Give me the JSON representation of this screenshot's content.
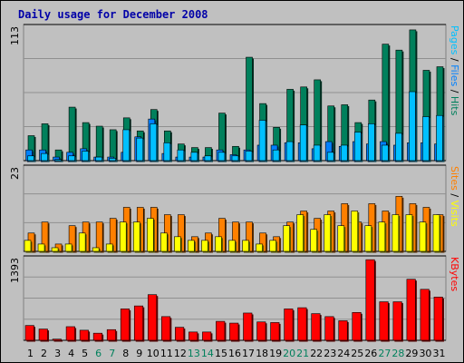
{
  "title": "Daily usage for December 2008",
  "colors": {
    "hits": "#00805c",
    "files": "#0080ff",
    "pages": "#00c0ff",
    "visits": "#ffff00",
    "sites": "#ff8000",
    "kbytes": "#ff0000",
    "weekend": "#00805c",
    "weekday": "#000000"
  },
  "chart_data": [
    {
      "type": "bar",
      "panel": "hits-files-pages",
      "categories": [
        "1",
        "2",
        "3",
        "4",
        "5",
        "6",
        "7",
        "8",
        "9",
        "10",
        "11",
        "12",
        "13",
        "14",
        "15",
        "16",
        "17",
        "18",
        "19",
        "20",
        "21",
        "22",
        "23",
        "24",
        "25",
        "26",
        "27",
        "28",
        "29",
        "30",
        "31"
      ],
      "weekend": [
        "6",
        "7",
        "13",
        "14",
        "20",
        "21",
        "27",
        "28"
      ],
      "ymax_label": "113",
      "ylim": [
        0,
        113
      ],
      "right_labels": [
        {
          "text": "Pages",
          "color": "#00c0ff"
        },
        {
          "text": " / ",
          "color": "#000000"
        },
        {
          "text": "Files",
          "color": "#0080ff"
        },
        {
          "text": " / ",
          "color": "#000000"
        },
        {
          "text": "Hits",
          "color": "#00805c"
        }
      ],
      "series": [
        {
          "name": "Hits",
          "values": [
            21,
            31,
            9,
            45,
            32,
            29,
            26,
            36,
            25,
            43,
            25,
            14,
            11,
            11,
            40,
            12,
            87,
            48,
            28,
            60,
            62,
            68,
            46,
            47,
            32,
            51,
            98,
            93,
            110,
            76,
            79
          ]
        },
        {
          "name": "Files",
          "values": [
            9,
            9,
            3,
            7,
            10,
            3,
            3,
            7,
            20,
            35,
            6,
            3,
            3,
            3,
            9,
            5,
            9,
            13,
            13,
            15,
            15,
            10,
            16,
            12,
            16,
            14,
            16,
            13,
            15,
            15,
            14
          ]
        },
        {
          "name": "Pages",
          "values": [
            4,
            6,
            1,
            4,
            8,
            3,
            2,
            26,
            19,
            31,
            15,
            9,
            7,
            4,
            7,
            4,
            8,
            34,
            9,
            16,
            30,
            13,
            7,
            13,
            24,
            31,
            13,
            23,
            58,
            37,
            38
          ]
        }
      ]
    },
    {
      "type": "bar",
      "panel": "visits-sites",
      "categories": [
        "1",
        "2",
        "3",
        "4",
        "5",
        "6",
        "7",
        "8",
        "9",
        "10",
        "11",
        "12",
        "13",
        "14",
        "15",
        "16",
        "17",
        "18",
        "19",
        "20",
        "21",
        "22",
        "23",
        "24",
        "25",
        "26",
        "27",
        "28",
        "29",
        "30",
        "31"
      ],
      "ymax_label": "23",
      "ylim": [
        0,
        23
      ],
      "right_labels": [
        {
          "text": "Sites",
          "color": "#ff8000"
        },
        {
          "text": " / ",
          "color": "#000000"
        },
        {
          "text": "Visits",
          "color": "#ffff00"
        }
      ],
      "series": [
        {
          "name": "Visits",
          "values": [
            3,
            2,
            1,
            2,
            5,
            1,
            2,
            8,
            8,
            9,
            5,
            4,
            3,
            3,
            4,
            3,
            3,
            2,
            3,
            7,
            10,
            6,
            10,
            7,
            11,
            7,
            8,
            10,
            10,
            8,
            10
          ]
        },
        {
          "name": "Sites",
          "values": [
            5,
            8,
            2,
            7,
            8,
            8,
            9,
            12,
            12,
            12,
            10,
            10,
            4,
            5,
            9,
            8,
            8,
            5,
            4,
            8,
            11,
            9,
            11,
            13,
            8,
            13,
            11,
            15,
            13,
            12,
            10
          ]
        }
      ]
    },
    {
      "type": "bar",
      "panel": "kbytes",
      "categories": [
        "1",
        "2",
        "3",
        "4",
        "5",
        "6",
        "7",
        "8",
        "9",
        "10",
        "11",
        "12",
        "13",
        "14",
        "15",
        "16",
        "17",
        "18",
        "19",
        "20",
        "21",
        "22",
        "23",
        "24",
        "25",
        "26",
        "27",
        "28",
        "29",
        "30",
        "31"
      ],
      "ymax_label": "1393",
      "ylim": [
        0,
        1393
      ],
      "right_labels": [
        {
          "text": "KBytes",
          "color": "#ff0000"
        }
      ],
      "series": [
        {
          "name": "KBytes",
          "values": [
            250,
            190,
            20,
            230,
            170,
            120,
            180,
            530,
            580,
            770,
            400,
            220,
            140,
            140,
            320,
            290,
            460,
            310,
            300,
            530,
            550,
            450,
            400,
            330,
            470,
            1360,
            650,
            650,
            1030,
            860,
            730
          ]
        }
      ]
    }
  ]
}
